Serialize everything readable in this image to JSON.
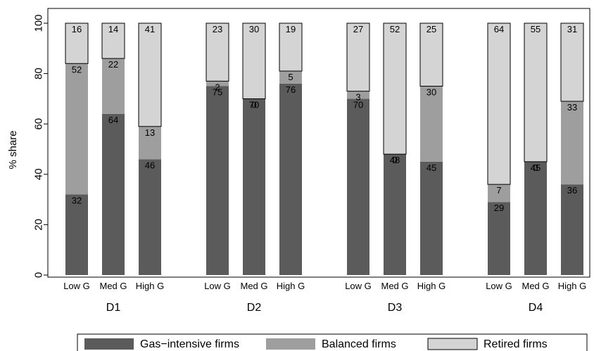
{
  "chart_data": {
    "type": "bar",
    "stacked": true,
    "ylabel": "% share",
    "ylim": [
      0,
      100
    ],
    "yticks": [
      0,
      20,
      40,
      60,
      80,
      100
    ],
    "groups": [
      "D1",
      "D2",
      "D3",
      "D4"
    ],
    "categories": [
      "Low G",
      "Med G",
      "High G"
    ],
    "series": [
      {
        "name": "Gas−intensive firms",
        "color": "#5b5b5b",
        "values": [
          [
            32,
            64,
            46
          ],
          [
            75,
            70,
            76
          ],
          [
            70,
            48,
            45
          ],
          [
            29,
            45,
            36
          ]
        ]
      },
      {
        "name": "Balanced firms",
        "color": "#9e9e9e",
        "values": [
          [
            52,
            22,
            13
          ],
          [
            2,
            0,
            5
          ],
          [
            3,
            0,
            30
          ],
          [
            7,
            0,
            33
          ]
        ]
      },
      {
        "name": "Retired firms",
        "color": "#d4d4d4",
        "values": [
          [
            16,
            14,
            41
          ],
          [
            23,
            30,
            19
          ],
          [
            27,
            52,
            25
          ],
          [
            64,
            55,
            31
          ]
        ]
      }
    ],
    "legend_position": "bottom",
    "grid": false
  }
}
